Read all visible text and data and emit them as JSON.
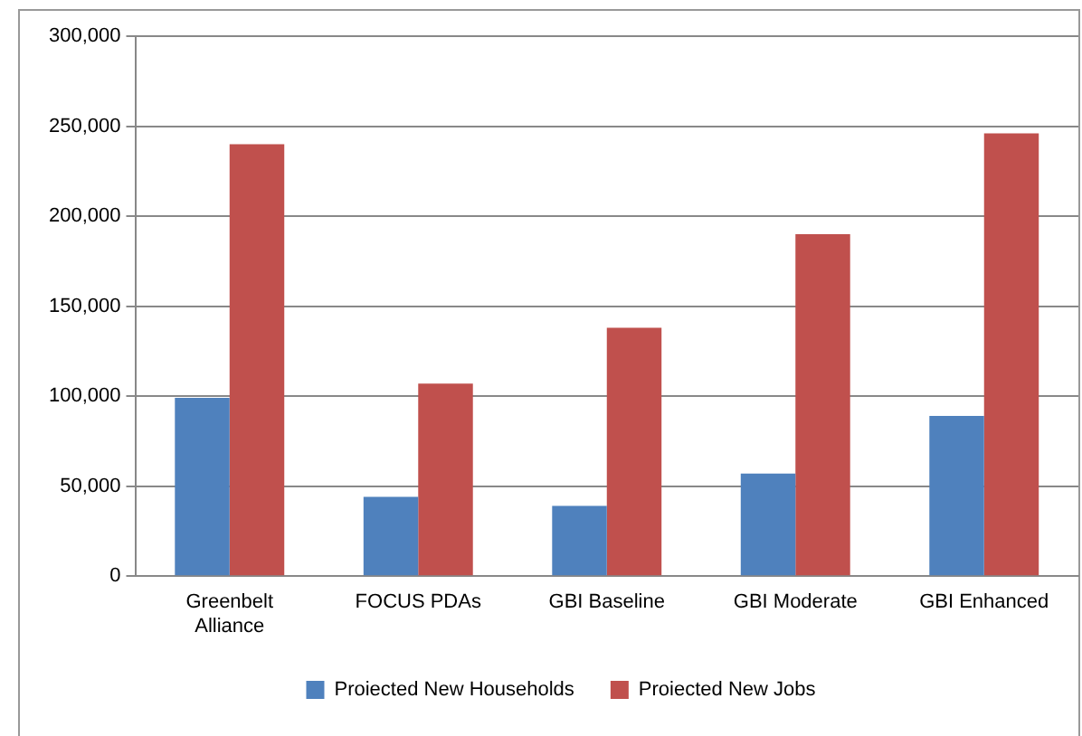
{
  "chart_data": {
    "type": "bar",
    "categories": [
      "Greenbelt Alliance",
      "FOCUS PDAs",
      "GBI Baseline",
      "GBI Moderate",
      "GBI Enhanced"
    ],
    "series": [
      {
        "name": "Proiected New Households",
        "color": "#4f81bd",
        "values": [
          99000,
          44000,
          39000,
          57000,
          89000
        ]
      },
      {
        "name": "Proiected New Jobs",
        "color": "#c0504d",
        "values": [
          240000,
          107000,
          138000,
          190000,
          246000
        ]
      }
    ],
    "ylim": [
      0,
      300000
    ],
    "yticks": [
      0,
      {
        "value": 50000,
        "label": "50,000"
      },
      {
        "value": 100000,
        "label": "100,000"
      },
      {
        "value": 150000,
        "label": "150,000"
      },
      {
        "value": 200000,
        "label": "200,000"
      },
      {
        "value": 250000,
        "label": "250,000"
      },
      {
        "value": 300000,
        "label": "300,000"
      }
    ],
    "grid": "y",
    "legend": "bottom"
  }
}
